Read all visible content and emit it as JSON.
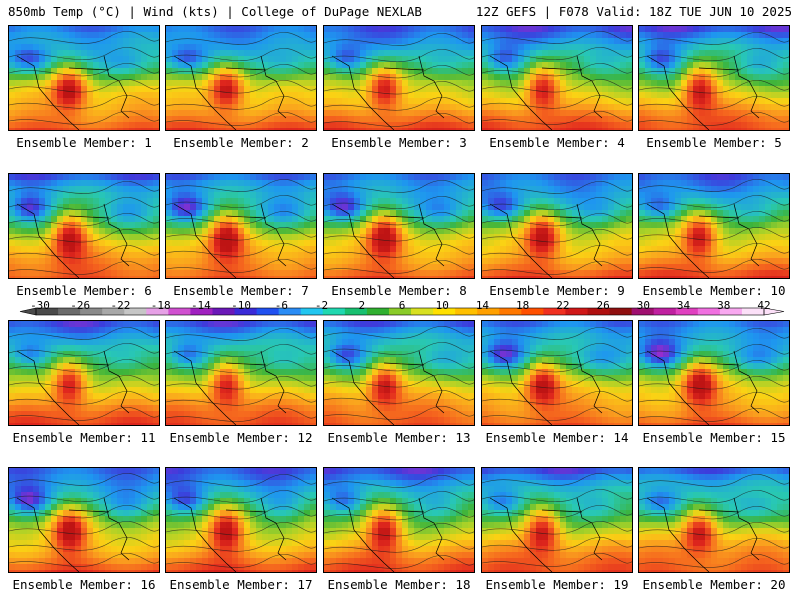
{
  "header": {
    "left": "850mb Temp (°C) | Wind (kts) | College of DuPage NEXLAB",
    "right": "12Z GEFS | F078 Valid: 18Z TUE JUN 10 2025"
  },
  "panels": [
    {
      "label": "Ensemble Member: 1"
    },
    {
      "label": "Ensemble Member: 2"
    },
    {
      "label": "Ensemble Member: 3"
    },
    {
      "label": "Ensemble Member: 4"
    },
    {
      "label": "Ensemble Member: 5"
    },
    {
      "label": "Ensemble Member: 6"
    },
    {
      "label": "Ensemble Member: 7"
    },
    {
      "label": "Ensemble Member: 8"
    },
    {
      "label": "Ensemble Member: 9"
    },
    {
      "label": "Ensemble Member: 10"
    },
    {
      "label": "Ensemble Member: 11"
    },
    {
      "label": "Ensemble Member: 12"
    },
    {
      "label": "Ensemble Member: 13"
    },
    {
      "label": "Ensemble Member: 14"
    },
    {
      "label": "Ensemble Member: 15"
    },
    {
      "label": "Ensemble Member: 16"
    },
    {
      "label": "Ensemble Member: 17"
    },
    {
      "label": "Ensemble Member: 18"
    },
    {
      "label": "Ensemble Member: 19"
    },
    {
      "label": "Ensemble Member: 20"
    }
  ],
  "colorbar": {
    "ticks": [
      "-30",
      "-26",
      "-22",
      "-18",
      "-14",
      "-10",
      "-6",
      "-2",
      "2",
      "6",
      "10",
      "14",
      "18",
      "22",
      "26",
      "30",
      "34",
      "38",
      "42"
    ],
    "colors": [
      "#4a4a4a",
      "#6b6b6b",
      "#8a8a8a",
      "#a8a8a8",
      "#c6c6c6",
      "#e6a0e6",
      "#d050d0",
      "#a020c0",
      "#6a18b8",
      "#3a2ad8",
      "#2050f0",
      "#2a8cf5",
      "#22c6f0",
      "#20d8b0",
      "#18c070",
      "#30b030",
      "#8acb28",
      "#d8e020",
      "#ffe000",
      "#ffc000",
      "#ffa000",
      "#ff7800",
      "#ff5000",
      "#f03020",
      "#d01818",
      "#b01010",
      "#901010",
      "#a01070",
      "#c020a0",
      "#e040c0",
      "#f070e0",
      "#f8a8f0",
      "#fce0f8"
    ]
  }
}
